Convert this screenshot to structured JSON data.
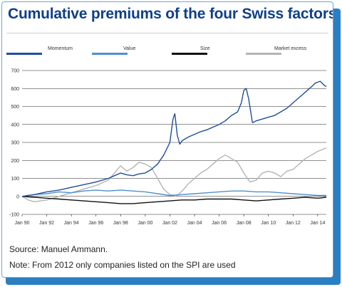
{
  "title": "Cumulative premiums of the four Swiss factors",
  "source": "Source: Manuel Ammann.",
  "note": "Note: From 2012 only companies listed on the SPI are used",
  "colors": {
    "frame_blue": "#2a7fc3",
    "title_blue": "#0e3f8a",
    "momentum": "#1f4e9c",
    "value": "#4f90cf",
    "size": "#111111",
    "market_excess": "#b4b4b4"
  },
  "chart_data": {
    "type": "line",
    "title": "Cumulative premiums of the four Swiss factors",
    "xlabel": "",
    "ylabel": "",
    "ylim": [
      -100,
      700
    ],
    "yticks": [
      -100,
      0,
      100,
      200,
      300,
      400,
      500,
      600,
      700
    ],
    "xlim": [
      1990,
      2014.7
    ],
    "xticks": [
      {
        "label": "Jan 90",
        "x": 1990
      },
      {
        "label": "Jan 92",
        "x": 1992
      },
      {
        "label": "Jan 94",
        "x": 1994
      },
      {
        "label": "Jan 96",
        "x": 1996
      },
      {
        "label": "Jan 98",
        "x": 1998
      },
      {
        "label": "Jan 00",
        "x": 2000
      },
      {
        "label": "Jan 02",
        "x": 2002
      },
      {
        "label": "Jan 04",
        "x": 2004
      },
      {
        "label": "Jan 06",
        "x": 2006
      },
      {
        "label": "Jan 08",
        "x": 2008
      },
      {
        "label": "Jan 10",
        "x": 2010
      },
      {
        "label": "Jan 12",
        "x": 2012
      },
      {
        "label": "Jan 14",
        "x": 2014
      }
    ],
    "grid": "horizontal",
    "legend": "top",
    "series": [
      {
        "name": "Momentum",
        "color": "#1f4e9c",
        "points": [
          [
            1990,
            0
          ],
          [
            1990.5,
            5
          ],
          [
            1991,
            10
          ],
          [
            1992,
            25
          ],
          [
            1993,
            35
          ],
          [
            1994,
            50
          ],
          [
            1995,
            65
          ],
          [
            1996,
            80
          ],
          [
            1997,
            100
          ],
          [
            1997.5,
            115
          ],
          [
            1998,
            130
          ],
          [
            1998.5,
            120
          ],
          [
            1999,
            115
          ],
          [
            1999.5,
            125
          ],
          [
            2000,
            130
          ],
          [
            2000.5,
            150
          ],
          [
            2001,
            180
          ],
          [
            2001.5,
            230
          ],
          [
            2002,
            300
          ],
          [
            2002.25,
            430
          ],
          [
            2002.4,
            460
          ],
          [
            2002.6,
            340
          ],
          [
            2002.8,
            290
          ],
          [
            2003,
            310
          ],
          [
            2003.5,
            330
          ],
          [
            2004,
            345
          ],
          [
            2004.5,
            360
          ],
          [
            2005,
            370
          ],
          [
            2005.5,
            385
          ],
          [
            2006,
            400
          ],
          [
            2006.5,
            420
          ],
          [
            2007,
            450
          ],
          [
            2007.5,
            470
          ],
          [
            2007.8,
            520
          ],
          [
            2008,
            590
          ],
          [
            2008.2,
            600
          ],
          [
            2008.4,
            540
          ],
          [
            2008.7,
            410
          ],
          [
            2009,
            420
          ],
          [
            2009.5,
            430
          ],
          [
            2010,
            440
          ],
          [
            2010.5,
            450
          ],
          [
            2011,
            470
          ],
          [
            2011.5,
            490
          ],
          [
            2012,
            520
          ],
          [
            2012.5,
            550
          ],
          [
            2013,
            580
          ],
          [
            2013.5,
            610
          ],
          [
            2013.8,
            630
          ],
          [
            2014.2,
            640
          ],
          [
            2014.5,
            620
          ],
          [
            2014.7,
            610
          ]
        ]
      },
      {
        "name": "Value",
        "color": "#4f90cf",
        "points": [
          [
            1990,
            0
          ],
          [
            1991,
            10
          ],
          [
            1992,
            15
          ],
          [
            1993,
            25
          ],
          [
            1994,
            20
          ],
          [
            1995,
            30
          ],
          [
            1996,
            35
          ],
          [
            1997,
            30
          ],
          [
            1998,
            35
          ],
          [
            1999,
            30
          ],
          [
            2000,
            25
          ],
          [
            2001,
            15
          ],
          [
            2002,
            5
          ],
          [
            2003,
            10
          ],
          [
            2004,
            15
          ],
          [
            2005,
            20
          ],
          [
            2006,
            25
          ],
          [
            2007,
            30
          ],
          [
            2008,
            30
          ],
          [
            2009,
            25
          ],
          [
            2010,
            25
          ],
          [
            2011,
            20
          ],
          [
            2012,
            15
          ],
          [
            2013,
            10
          ],
          [
            2014,
            5
          ],
          [
            2014.7,
            5
          ]
        ]
      },
      {
        "name": "Size",
        "color": "#111111",
        "points": [
          [
            1990,
            0
          ],
          [
            1991,
            -5
          ],
          [
            1992,
            -10
          ],
          [
            1993,
            -15
          ],
          [
            1994,
            -20
          ],
          [
            1995,
            -25
          ],
          [
            1996,
            -30
          ],
          [
            1997,
            -35
          ],
          [
            1998,
            -40
          ],
          [
            1999,
            -40
          ],
          [
            2000,
            -35
          ],
          [
            2001,
            -30
          ],
          [
            2002,
            -25
          ],
          [
            2003,
            -20
          ],
          [
            2004,
            -20
          ],
          [
            2005,
            -15
          ],
          [
            2006,
            -15
          ],
          [
            2007,
            -15
          ],
          [
            2008,
            -20
          ],
          [
            2009,
            -25
          ],
          [
            2010,
            -20
          ],
          [
            2011,
            -15
          ],
          [
            2012,
            -10
          ],
          [
            2013,
            -5
          ],
          [
            2014,
            -10
          ],
          [
            2014.7,
            -5
          ]
        ]
      },
      {
        "name": "Market excess",
        "color": "#b4b4b4",
        "points": [
          [
            1990,
            0
          ],
          [
            1990.5,
            -20
          ],
          [
            1991,
            -30
          ],
          [
            1992,
            -20
          ],
          [
            1993,
            0
          ],
          [
            1994,
            20
          ],
          [
            1995,
            40
          ],
          [
            1996,
            60
          ],
          [
            1997,
            90
          ],
          [
            1997.5,
            130
          ],
          [
            1998,
            170
          ],
          [
            1998.5,
            140
          ],
          [
            1999,
            160
          ],
          [
            1999.5,
            190
          ],
          [
            2000,
            180
          ],
          [
            2000.5,
            160
          ],
          [
            2001,
            100
          ],
          [
            2001.5,
            40
          ],
          [
            2002,
            10
          ],
          [
            2002.5,
            0
          ],
          [
            2003,
            30
          ],
          [
            2003.5,
            70
          ],
          [
            2004,
            100
          ],
          [
            2004.5,
            130
          ],
          [
            2005,
            150
          ],
          [
            2005.5,
            180
          ],
          [
            2006,
            210
          ],
          [
            2006.5,
            230
          ],
          [
            2007,
            210
          ],
          [
            2007.5,
            190
          ],
          [
            2008,
            130
          ],
          [
            2008.5,
            80
          ],
          [
            2009,
            90
          ],
          [
            2009.5,
            130
          ],
          [
            2010,
            140
          ],
          [
            2010.5,
            130
          ],
          [
            2011,
            110
          ],
          [
            2011.5,
            140
          ],
          [
            2012,
            150
          ],
          [
            2012.5,
            180
          ],
          [
            2013,
            210
          ],
          [
            2013.5,
            230
          ],
          [
            2014,
            250
          ],
          [
            2014.7,
            270
          ]
        ]
      }
    ]
  }
}
